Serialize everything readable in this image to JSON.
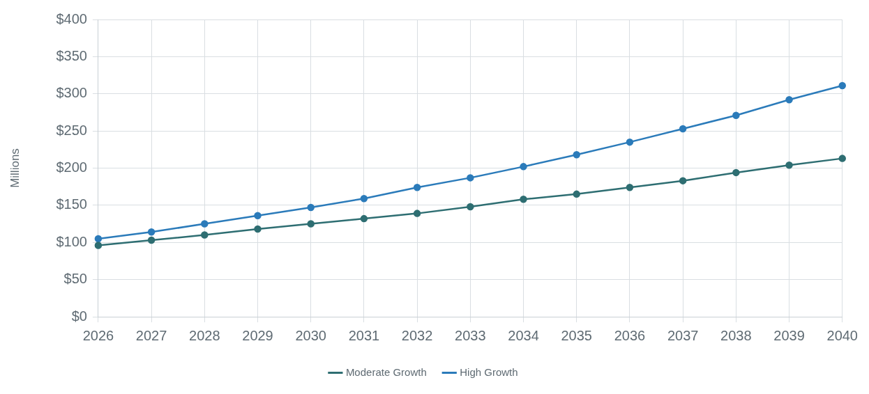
{
  "chart_data": {
    "type": "line",
    "ylabel": "Millions",
    "categories": [
      "2026",
      "2027",
      "2028",
      "2029",
      "2030",
      "2031",
      "2032",
      "2033",
      "2034",
      "2035",
      "2036",
      "2037",
      "2038",
      "2039",
      "2040"
    ],
    "series": [
      {
        "name": "Moderate Growth",
        "color": "#2e6e72",
        "values": [
          96,
          103,
          110,
          118,
          125,
          132,
          139,
          148,
          158,
          165,
          174,
          183,
          194,
          204,
          213
        ]
      },
      {
        "name": "High Growth",
        "color": "#2b7bba",
        "values": [
          105,
          114,
          125,
          136,
          147,
          159,
          174,
          187,
          202,
          218,
          235,
          253,
          271,
          292,
          311
        ]
      }
    ],
    "ylim": [
      0,
      400
    ],
    "yticks": [
      {
        "value": 0,
        "label": "$0"
      },
      {
        "value": 50,
        "label": "$50"
      },
      {
        "value": 100,
        "label": "$100"
      },
      {
        "value": 150,
        "label": "$150"
      },
      {
        "value": 200,
        "label": "$200"
      },
      {
        "value": 250,
        "label": "$250"
      },
      {
        "value": 300,
        "label": "$300"
      },
      {
        "value": 350,
        "label": "$350"
      },
      {
        "value": 400,
        "label": "$400"
      }
    ],
    "grid": true,
    "legend": "bottom",
    "marker": "circle",
    "line_style": "solid"
  }
}
